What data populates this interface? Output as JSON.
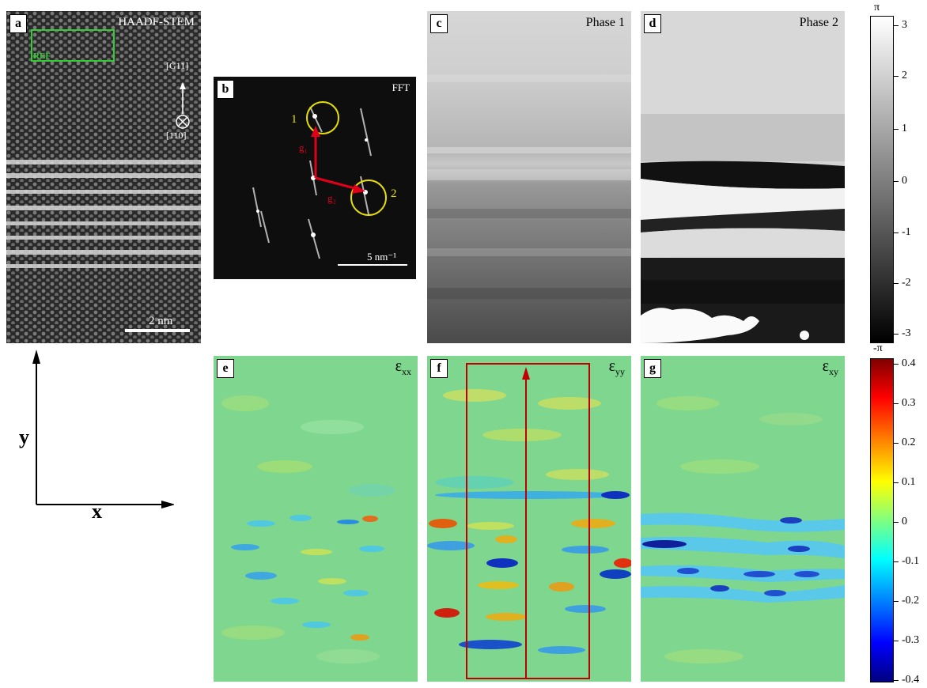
{
  "figure": {
    "a": {
      "label": "a",
      "title": "HAADF-STEM",
      "ref": "REF",
      "dir_up": "[Ġ11]",
      "dir_into": "[110]",
      "scale": "2 nm"
    },
    "b": {
      "label": "b",
      "title": "FFT",
      "spot1": "1",
      "spot2": "2",
      "g1": "g₁",
      "g2": "g₂",
      "scale": "5 nm⁻¹"
    },
    "c": {
      "label": "c",
      "title": "Phase 1"
    },
    "d": {
      "label": "d",
      "title": "Phase 2"
    },
    "e": {
      "label": "e",
      "title_main": "ε",
      "title_sub": "xx"
    },
    "f": {
      "label": "f",
      "title_main": "ε",
      "title_sub": "yy"
    },
    "g": {
      "label": "g",
      "title_main": "ε",
      "title_sub": "xy"
    },
    "axes": {
      "x": "x",
      "y": "y"
    },
    "phase_colorbar": {
      "top": "π",
      "bottom": "-π",
      "ticks": [
        "3",
        "2",
        "1",
        "0",
        "-1",
        "-2",
        "-3"
      ]
    },
    "strain_colorbar": {
      "ticks": [
        "0.4",
        "0.3",
        "0.2",
        "0.1",
        "0",
        "-0.1",
        "-0.2",
        "-0.3",
        "-0.4"
      ]
    }
  },
  "colors": {
    "ref_box": "#33cc33",
    "vector": "#e0001a",
    "circle": "#e8e000",
    "strain_box": "#c00000"
  }
}
